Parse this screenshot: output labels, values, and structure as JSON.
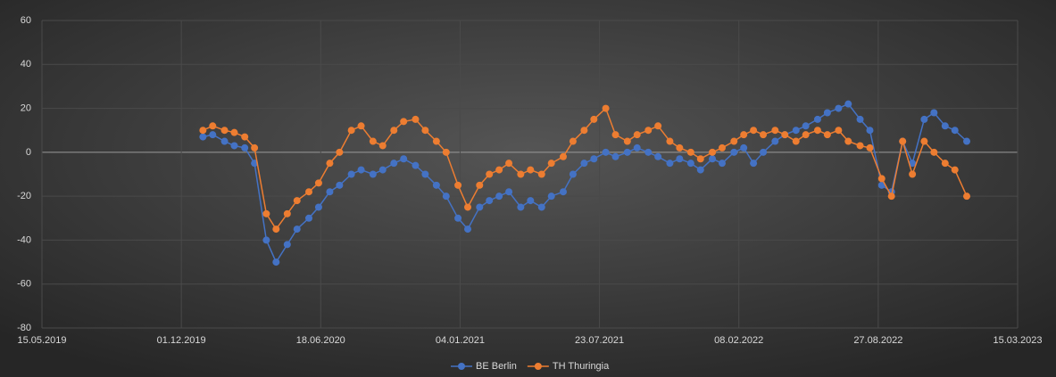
{
  "chart_data": {
    "type": "line",
    "xlim": [
      "15.05.2019",
      "15.03.2023"
    ],
    "xticks": [
      "15.05.2019",
      "01.12.2019",
      "18.06.2020",
      "04.01.2021",
      "23.07.2021",
      "08.02.2022",
      "27.08.2022",
      "15.03.2023"
    ],
    "ylim": [
      -80,
      60
    ],
    "yticks": [
      -80,
      -60,
      -40,
      -20,
      0,
      20,
      40,
      60
    ],
    "grid": true,
    "legend": "bottom",
    "x": [
      "01.01.2020",
      "15.01.2020",
      "01.02.2020",
      "15.02.2020",
      "01.03.2020",
      "15.03.2020",
      "01.04.2020",
      "15.04.2020",
      "01.05.2020",
      "15.05.2020",
      "01.06.2020",
      "15.06.2020",
      "01.07.2020",
      "15.07.2020",
      "01.08.2020",
      "15.08.2020",
      "01.09.2020",
      "15.09.2020",
      "01.10.2020",
      "15.10.2020",
      "01.11.2020",
      "15.11.2020",
      "01.12.2020",
      "15.12.2020",
      "01.01.2021",
      "15.01.2021",
      "01.02.2021",
      "15.02.2021",
      "01.03.2021",
      "15.03.2021",
      "01.04.2021",
      "15.04.2021",
      "01.05.2021",
      "15.05.2021",
      "01.06.2021",
      "15.06.2021",
      "01.07.2021",
      "15.07.2021",
      "01.08.2021",
      "15.08.2021",
      "01.09.2021",
      "15.09.2021",
      "01.10.2021",
      "15.10.2021",
      "01.11.2021",
      "15.11.2021",
      "01.12.2021",
      "15.12.2021",
      "01.01.2022",
      "15.01.2022",
      "01.02.2022",
      "15.02.2022",
      "01.03.2022",
      "15.03.2022",
      "01.04.2022",
      "15.04.2022",
      "01.05.2022",
      "15.05.2022",
      "01.06.2022",
      "15.06.2022",
      "01.07.2022",
      "15.07.2022",
      "01.08.2022",
      "15.08.2022",
      "01.09.2022",
      "15.09.2022",
      "01.10.2022",
      "15.10.2022",
      "01.11.2022",
      "15.11.2022",
      "01.12.2022",
      "15.12.2022",
      "01.01.2023"
    ],
    "series": [
      {
        "name": "BE Berlin",
        "color": "#4472c4",
        "values": [
          7,
          8,
          5,
          3,
          2,
          -5,
          -40,
          -50,
          -42,
          -35,
          -30,
          -25,
          -18,
          -15,
          -10,
          -8,
          -10,
          -8,
          -5,
          -3,
          -6,
          -10,
          -15,
          -20,
          -30,
          -35,
          -25,
          -22,
          -20,
          -18,
          -25,
          -22,
          -25,
          -20,
          -18,
          -10,
          -5,
          -3,
          0,
          -2,
          0,
          2,
          0,
          -2,
          -5,
          -3,
          -5,
          -8,
          -3,
          -5,
          0,
          2,
          -5,
          0,
          5,
          8,
          10,
          12,
          15,
          18,
          20,
          22,
          15,
          10,
          -15,
          -18,
          5,
          -5,
          15,
          18,
          12,
          10,
          5
        ]
      },
      {
        "name": "TH Thuringia",
        "color": "#ed7d31",
        "values": [
          10,
          12,
          10,
          9,
          7,
          2,
          -28,
          -35,
          -28,
          -22,
          -18,
          -14,
          -5,
          0,
          10,
          12,
          5,
          3,
          10,
          14,
          15,
          10,
          5,
          0,
          -15,
          -25,
          -15,
          -10,
          -8,
          -5,
          -10,
          -8,
          -10,
          -5,
          -2,
          5,
          10,
          15,
          20,
          8,
          5,
          8,
          10,
          12,
          5,
          2,
          0,
          -3,
          0,
          2,
          5,
          8,
          10,
          8,
          10,
          8,
          5,
          8,
          10,
          8,
          10,
          5,
          3,
          2,
          -12,
          -20,
          5,
          -10,
          5,
          0,
          -5,
          -8,
          -20
        ]
      }
    ]
  }
}
